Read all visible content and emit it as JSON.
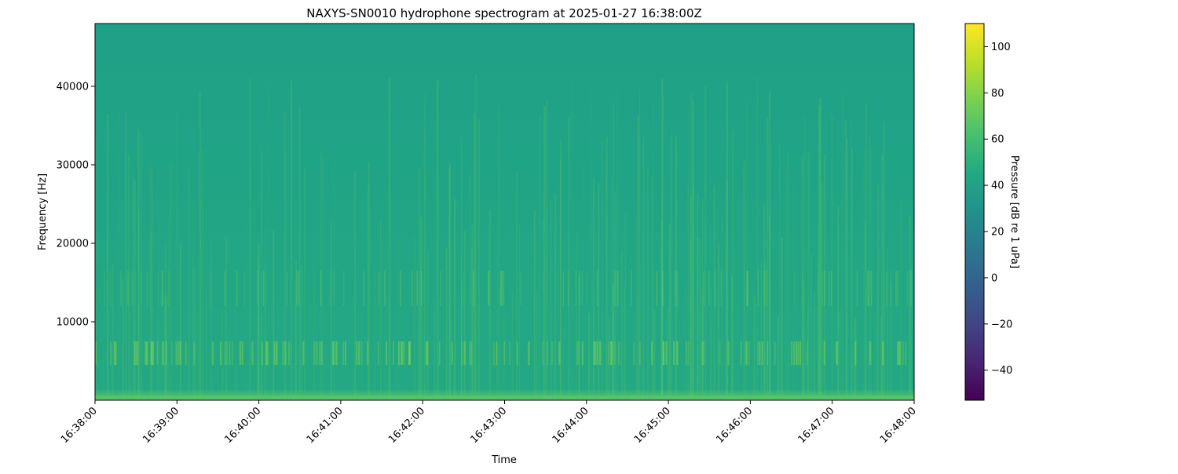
{
  "chart_data": {
    "type": "heatmap",
    "title": "NAXYS-SN0010 hydrophone spectrogram at 2025-01-27 16:38:00Z",
    "xlabel": "Time",
    "ylabel": "Frequency [Hz]",
    "x_ticks": [
      "16:38:00",
      "16:39:00",
      "16:40:00",
      "16:41:00",
      "16:42:00",
      "16:43:00",
      "16:44:00",
      "16:45:00",
      "16:46:00",
      "16:47:00",
      "16:48:00"
    ],
    "xlim": [
      "16:38:00",
      "16:48:00"
    ],
    "y_ticks": [
      10000,
      20000,
      30000,
      40000
    ],
    "ylim": [
      0,
      48000
    ],
    "colorbar": {
      "label": "Pressure [dB re 1 uPa]",
      "colormap": "viridis",
      "range": [
        -53,
        110
      ],
      "ticks": [
        -40,
        -20,
        0,
        20,
        40,
        60,
        80,
        100
      ]
    },
    "typical_level_db": 50,
    "features": "broadband transient streaks up to ~40000 Hz; energy bands near 5000-7000 Hz and 13000-16000 Hz; strong energy below 500 Hz",
    "grid": false
  }
}
